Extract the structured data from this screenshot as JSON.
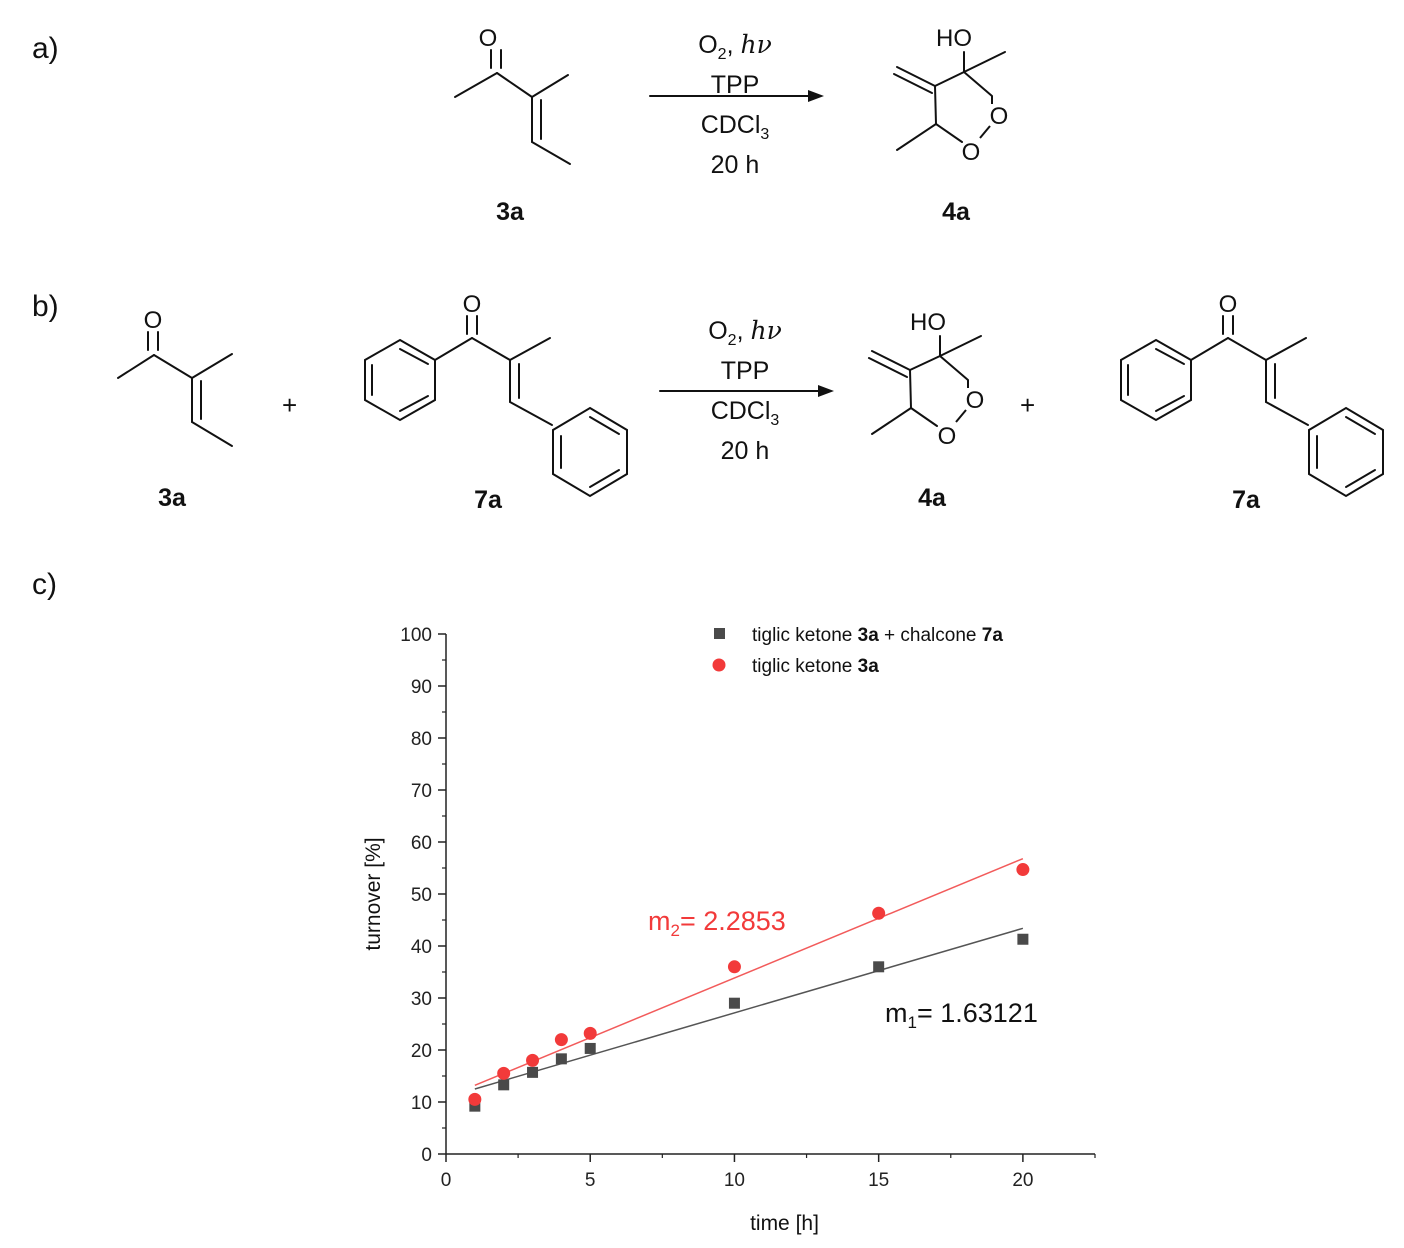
{
  "panels": {
    "a": "a)",
    "b": "b)",
    "c": "c)"
  },
  "scheme_a": {
    "reagent": "O",
    "reagent_sub": "2",
    "reagent_light": "hν",
    "catalyst": "TPP",
    "solvent_pre": "CDCl",
    "solvent_sub": "3",
    "time": "20 h",
    "start_label": "3a",
    "product_label": "4a",
    "product_oh": "HO"
  },
  "scheme_b": {
    "reagent": "O",
    "reagent_sub": "2",
    "reagent_light": "hν",
    "catalyst": "TPP",
    "solvent_pre": "CDCl",
    "solvent_sub": "3",
    "time": "20 h",
    "start_label_1": "3a",
    "start_label_2": "7a",
    "product_label_1": "4a",
    "product_label_2": "7a",
    "plus": "+",
    "product_oh": "HO"
  },
  "atoms": {
    "O": "O"
  },
  "chart_data": {
    "type": "scatter",
    "xlabel": "time [h]",
    "ylabel": "turnover [%]",
    "xlim": [
      0,
      22.5
    ],
    "ylim": [
      0,
      100
    ],
    "xticks": [
      0,
      5,
      10,
      15,
      20
    ],
    "yticks": [
      0,
      10,
      20,
      30,
      40,
      50,
      60,
      70,
      80,
      90,
      100
    ],
    "legend_position": "top-right",
    "series": [
      {
        "name": "tiglic ketone 3a + chalcone 7a",
        "name_parts": [
          "tiglic ketone ",
          "3a",
          " + chalcone ",
          "7a"
        ],
        "marker": "square",
        "color": "#4a4a4a",
        "x": [
          1,
          2,
          3,
          4,
          5,
          10,
          15,
          20
        ],
        "y": [
          9.2,
          13.3,
          15.7,
          18.3,
          20.3,
          29.0,
          36.0,
          41.3
        ],
        "fit": {
          "x_start": 1,
          "x_end": 20,
          "y_start": 12.5,
          "y_end": 43.4
        },
        "slope_label_pre": "m",
        "slope_label_sub": "1",
        "slope_label_post": "= 1.63121"
      },
      {
        "name": "tiglic ketone 3a",
        "name_parts": [
          "tiglic ketone ",
          "3a"
        ],
        "marker": "circle",
        "color": "#f23a3a",
        "x": [
          1,
          2,
          3,
          4,
          5,
          10,
          15,
          20
        ],
        "y": [
          10.5,
          15.5,
          18.0,
          22.0,
          23.2,
          36.0,
          46.3,
          54.7
        ],
        "fit": {
          "x_start": 1,
          "x_end": 20,
          "y_start": 13.2,
          "y_end": 56.8
        },
        "slope_label_pre": "m",
        "slope_label_sub": "2",
        "slope_label_post": "= 2.2853"
      }
    ]
  }
}
